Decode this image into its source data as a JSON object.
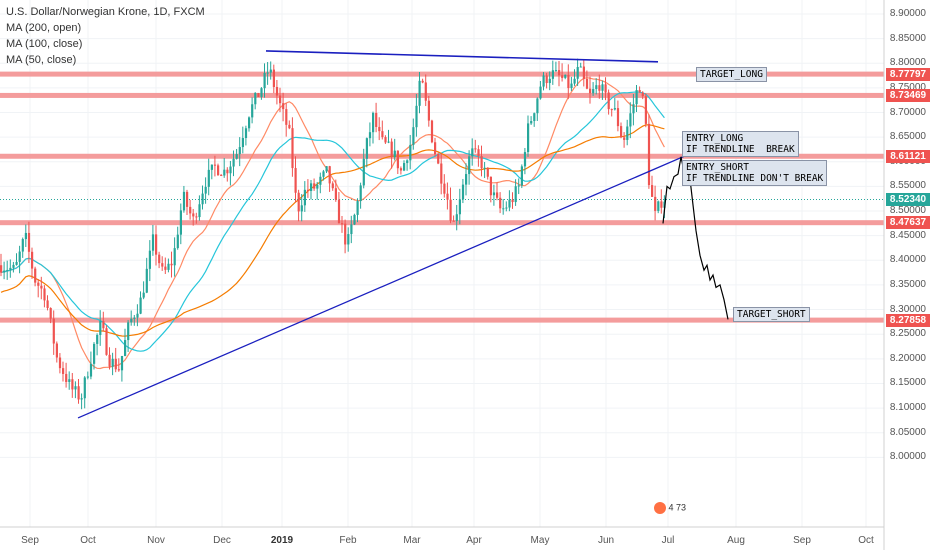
{
  "legend": {
    "title": "U.S. Dollar/Norwegian Krone, 1D, FXCM",
    "ma1": "MA (200, open)",
    "ma2": "MA (100, close)",
    "ma3": "MA (50, close)"
  },
  "colors": {
    "up": "#26a69a",
    "down": "#ef5350",
    "ma200": "#f57c00",
    "ma100": "#26c6da",
    "ma50": "#ff8a65",
    "trend": "#1a1fbf",
    "level": "#f28b8b",
    "current": "#26a69a"
  },
  "chart_data": {
    "type": "candlestick",
    "ylim": [
      7.97,
      8.92
    ],
    "y_ticks": [
      "8.90000",
      "8.85000",
      "8.80000",
      "8.75000",
      "8.70000",
      "8.65000",
      "8.60000",
      "8.55000",
      "8.50000",
      "8.45000",
      "8.40000",
      "8.35000",
      "8.30000",
      "8.25000",
      "8.20000",
      "8.15000",
      "8.10000",
      "8.05000",
      "8.00000"
    ],
    "x_ticks": [
      "Sep",
      "Oct",
      "Nov",
      "Dec",
      "2019",
      "Feb",
      "Mar",
      "Apr",
      "May",
      "Jun",
      "Jul",
      "Aug",
      "Sep",
      "Oct"
    ],
    "levels": [
      {
        "price": 8.77797,
        "label": "8.77797"
      },
      {
        "price": 8.73469,
        "label": "8.73469"
      },
      {
        "price": 8.61121,
        "label": "8.61121"
      },
      {
        "price": 8.47637,
        "label": "8.47637"
      },
      {
        "price": 8.27858,
        "label": "8.27858"
      }
    ],
    "current_price": {
      "price": 8.5234,
      "label": "8.52340"
    },
    "annotations": [
      {
        "text": "TARGET_LONG"
      },
      {
        "text": "ENTRY_LONG\nIF TRENDLINE  BREAK"
      },
      {
        "text": "ENTRY_SHORT\nIF TRENDLINE DON'T BREAK"
      },
      {
        "text": "TARGET_SHORT"
      }
    ],
    "badge": {
      "count_a": "4",
      "count_b": "73"
    }
  }
}
